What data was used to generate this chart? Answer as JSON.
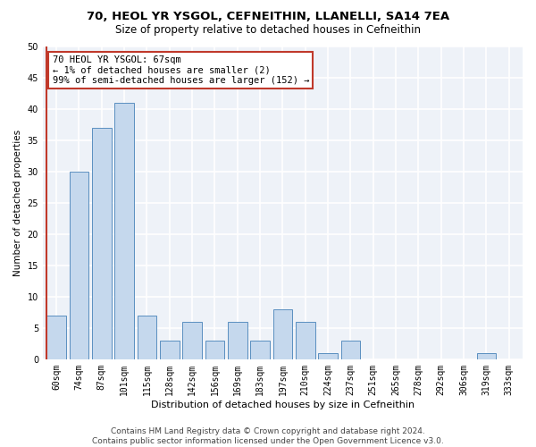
{
  "title1": "70, HEOL YR YSGOL, CEFNEITHIN, LLANELLI, SA14 7EA",
  "title2": "Size of property relative to detached houses in Cefneithin",
  "xlabel": "Distribution of detached houses by size in Cefneithin",
  "ylabel": "Number of detached properties",
  "bins": [
    "60sqm",
    "74sqm",
    "87sqm",
    "101sqm",
    "115sqm",
    "128sqm",
    "142sqm",
    "156sqm",
    "169sqm",
    "183sqm",
    "197sqm",
    "210sqm",
    "224sqm",
    "237sqm",
    "251sqm",
    "265sqm",
    "278sqm",
    "292sqm",
    "306sqm",
    "319sqm",
    "333sqm"
  ],
  "values": [
    7,
    30,
    37,
    41,
    7,
    3,
    6,
    3,
    6,
    3,
    8,
    6,
    1,
    3,
    0,
    0,
    0,
    0,
    0,
    1,
    0
  ],
  "bar_color": "#c5d8ed",
  "bar_edge_color": "#5a8fc0",
  "highlight_color": "#c0392b",
  "annotation_line1": "70 HEOL YR YSGOL: 67sqm",
  "annotation_line2": "← 1% of detached houses are smaller (2)",
  "annotation_line3": "99% of semi-detached houses are larger (152) →",
  "annotation_box_color": "white",
  "annotation_box_edge": "#c0392b",
  "ylim": [
    0,
    50
  ],
  "yticks": [
    0,
    5,
    10,
    15,
    20,
    25,
    30,
    35,
    40,
    45,
    50
  ],
  "footnote1": "Contains HM Land Registry data © Crown copyright and database right 2024.",
  "footnote2": "Contains public sector information licensed under the Open Government Licence v3.0.",
  "background_color": "#eef2f8",
  "grid_color": "white",
  "title1_fontsize": 9.5,
  "title2_fontsize": 8.5,
  "xlabel_fontsize": 8,
  "ylabel_fontsize": 7.5,
  "tick_fontsize": 7,
  "annotation_fontsize": 7.5,
  "footnote_fontsize": 6.5
}
